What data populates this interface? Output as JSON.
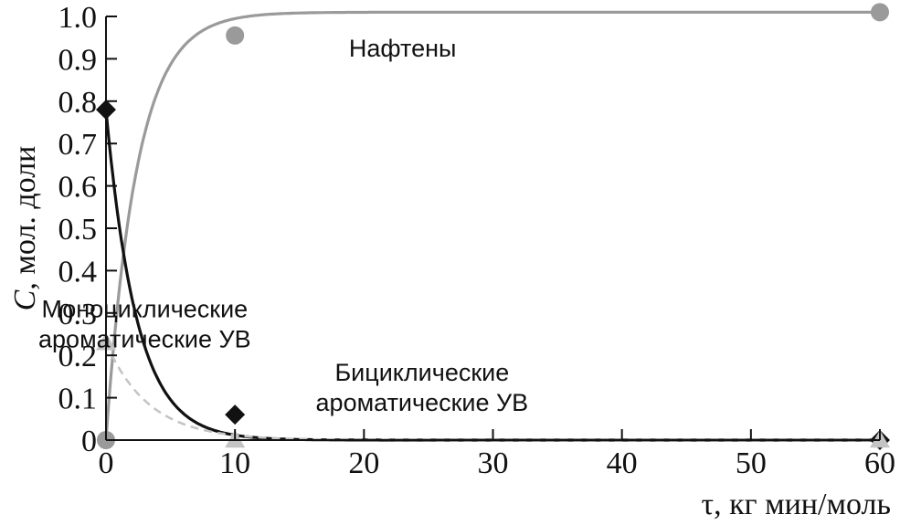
{
  "chart_data": {
    "type": "scatter",
    "xlabel": "τ, кг мин/моль",
    "ylabel_symbol": "C",
    "ylabel_rest": ", мол. доли",
    "xlim": [
      0,
      60
    ],
    "ylim": [
      0,
      1.0
    ],
    "x_ticks": [
      0,
      10,
      20,
      30,
      40,
      50,
      60
    ],
    "x_tick_labels": [
      "0",
      "10",
      "20",
      "30",
      "40",
      "50",
      "60"
    ],
    "y_ticks": [
      0,
      0.1,
      0.2,
      0.3,
      0.4,
      0.5,
      0.6,
      0.7,
      0.8,
      0.9,
      1.0
    ],
    "y_tick_labels": [
      "0",
      "0.1",
      "0.2",
      "0.3",
      "0.4",
      "0.5",
      "0.6",
      "0.7",
      "0.8",
      "0.9",
      "1.0"
    ],
    "series": [
      {
        "label_lines": [
          "Нафтены"
        ],
        "color": "#9a9a9a",
        "marker": "circle",
        "line_style": "solid",
        "x": [
          0,
          10,
          60
        ],
        "y": [
          0.0,
          0.955,
          1.01
        ],
        "fit": {
          "model": "saturation",
          "a": 1.01,
          "k": 0.42
        }
      },
      {
        "label_lines": [
          "Моноциклические",
          "ароматические УВ"
        ],
        "color": "#111111",
        "marker": "diamond",
        "line_style": "solid",
        "x": [
          0,
          10,
          60
        ],
        "y": [
          0.78,
          0.06,
          0.0
        ],
        "fit": {
          "model": "decay",
          "a": 0.78,
          "k": 0.42
        }
      },
      {
        "label_lines": [
          "Бициклические",
          "ароматические УВ"
        ],
        "color": "#c4c4c4",
        "marker": "triangle",
        "line_style": "dashed",
        "x": [
          0,
          10,
          60
        ],
        "y": [
          0.23,
          0.0,
          0.0
        ],
        "fit": {
          "model": "decay",
          "a": 0.23,
          "k": 0.3
        }
      }
    ],
    "annotations": [
      {
        "series": 0,
        "x": 23,
        "y": 0.905
      },
      {
        "series": 1,
        "x": 3,
        "y": 0.29
      },
      {
        "series": 2,
        "x": 24.5,
        "y": 0.14
      }
    ]
  }
}
